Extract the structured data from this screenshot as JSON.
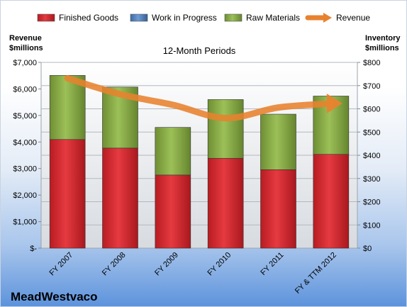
{
  "chart_data": {
    "type": "bar",
    "subtitle": "12-Month Periods",
    "company": "MeadWestvaco",
    "ylabel_left": [
      "Revenue",
      "$millions"
    ],
    "ylabel_right": [
      "Inventory",
      "$millions"
    ],
    "categories": [
      "FY 2007",
      "FY 2008",
      "FY 2009",
      "FY 2010",
      "FY 2011",
      "FY & TTM 2012"
    ],
    "left_axis": {
      "range": [
        0,
        7000
      ],
      "ticks": [
        0,
        1000,
        2000,
        3000,
        4000,
        5000,
        6000,
        7000
      ],
      "tick_labels": [
        "$-",
        "$1,000",
        "$2,000",
        "$3,000",
        "$4,000",
        "$5,000",
        "$6,000",
        "$7,000"
      ]
    },
    "right_axis": {
      "range": [
        0,
        800
      ],
      "ticks": [
        0,
        100,
        200,
        300,
        400,
        500,
        600,
        700,
        800
      ],
      "tick_labels": [
        "$0",
        "$100",
        "$200",
        "$300",
        "$400",
        "$500",
        "$600",
        "$700",
        "$800"
      ]
    },
    "gridlines": true,
    "legend_position": "top",
    "series": [
      {
        "name": "Finished Goods",
        "kind": "stacked-bar",
        "axis": "right",
        "color": "#d8282f",
        "values": [
          468,
          431,
          315,
          387,
          338,
          404
        ]
      },
      {
        "name": "Work in Progress",
        "kind": "stacked-bar",
        "axis": "right",
        "color": "#4f81bd",
        "values": [
          0,
          0,
          0,
          0,
          0,
          0
        ]
      },
      {
        "name": "Raw Materials",
        "kind": "stacked-bar",
        "axis": "right",
        "color": "#8db049",
        "values": [
          276,
          263,
          205,
          253,
          239,
          251
        ]
      },
      {
        "name": "Revenue",
        "kind": "line",
        "axis": "left",
        "color": "#e8822e",
        "values": [
          6400,
          5800,
          5400,
          4900,
          5300,
          5450
        ]
      }
    ]
  }
}
